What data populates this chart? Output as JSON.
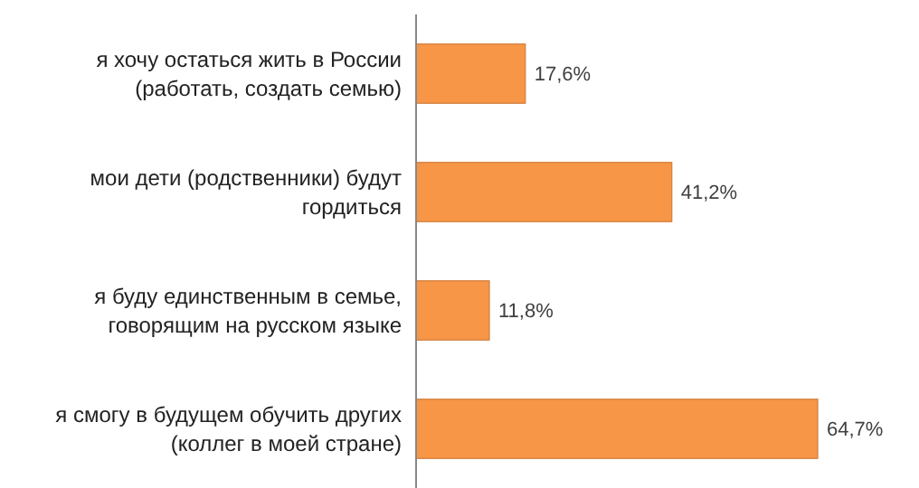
{
  "chart_data": {
    "type": "bar",
    "orientation": "horizontal",
    "categories": [
      "я хочу остаться жить в России (работать, создать семью)",
      "мои дети (родственники) будут гордиться",
      "я буду единственным в семье, говорящим на русском языке",
      "я смогу в будущем обучить других (коллег в моей стране)"
    ],
    "values": [
      17.6,
      41.2,
      11.8,
      64.7
    ],
    "value_labels": [
      "17,6%",
      "41,2%",
      "11,8%",
      "64,7%"
    ],
    "color": "#f79646",
    "tick_labels": "y"
  }
}
